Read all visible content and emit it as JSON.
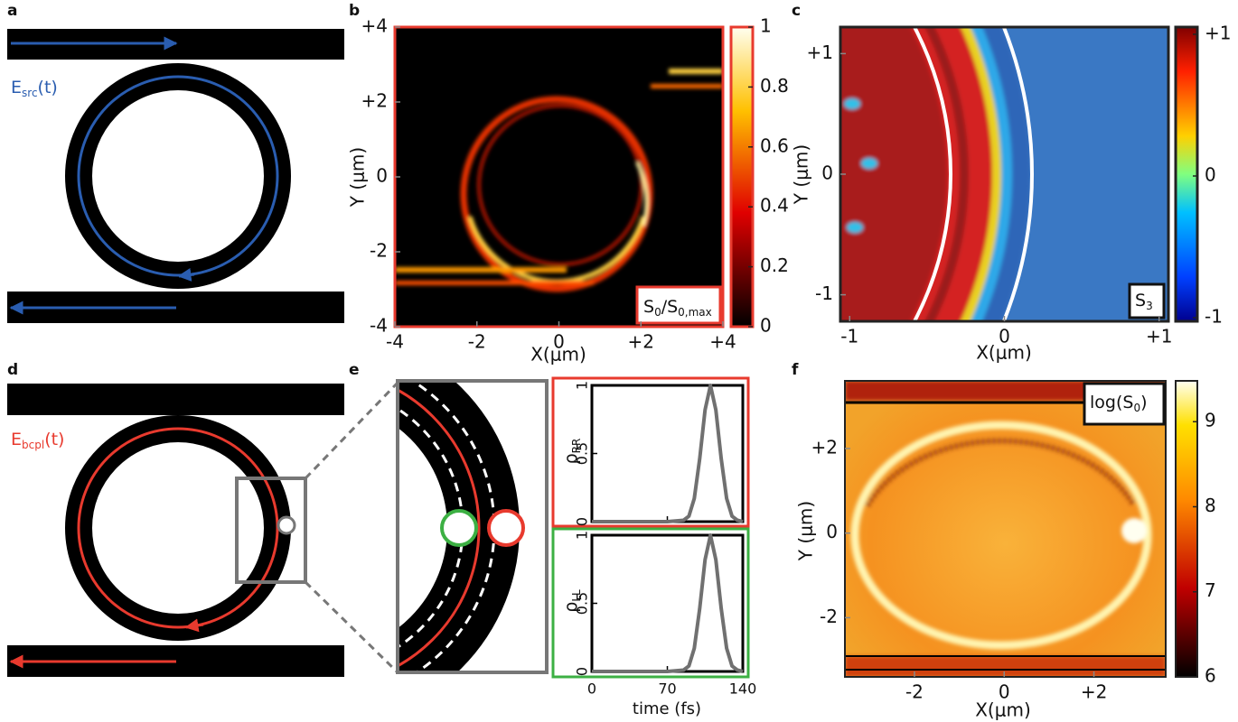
{
  "panel_a": {
    "letter": "a",
    "field": {
      "symbol": "E",
      "subscript": "src",
      "suffix": "(t)"
    }
  },
  "panel_b": {
    "letter": "b",
    "xlabel": "X(μm)",
    "ylabel": "Y (μm)",
    "xlim": [
      -4,
      4
    ],
    "ylim": [
      -4,
      4
    ],
    "xticks": [
      -4,
      -2,
      0,
      {
        "value": 2,
        "label": "+2"
      },
      {
        "value": 4,
        "label": "+4"
      }
    ],
    "yticks": [
      -4,
      -2,
      0,
      {
        "value": 2,
        "label": "+2"
      },
      {
        "value": 4,
        "label": "+4"
      }
    ],
    "clim": [
      0,
      1
    ],
    "cticks": [
      0,
      0.2,
      0.4,
      0.6,
      0.8,
      1
    ],
    "annotation": {
      "parts": [
        "S",
        "0",
        "/S",
        "0,max"
      ]
    }
  },
  "panel_c": {
    "letter": "c",
    "xlabel": "X(μm)",
    "ylabel": "Y (μm)",
    "xlim": [
      -1.06,
      1.06
    ],
    "ylim": [
      -1.22,
      1.22
    ],
    "xticks": [
      -1,
      0,
      {
        "value": 1,
        "label": "+1"
      }
    ],
    "yticks": [
      -1,
      0,
      {
        "value": 1,
        "label": "+1"
      }
    ],
    "clim": [
      -1,
      1
    ],
    "cticks": [
      -1,
      0,
      {
        "value": 1,
        "label": "+1"
      }
    ],
    "annotation": {
      "parts": [
        "S",
        "3"
      ]
    }
  },
  "panel_d": {
    "letter": "d",
    "field": {
      "symbol": "E",
      "subscript": "bcpl",
      "suffix": "(t)"
    }
  },
  "panel_e": {
    "letter": "e",
    "xlabel": "time (fs)",
    "xlim": [
      0,
      140
    ],
    "ylim": [
      0,
      1
    ],
    "xticks": [
      0,
      70,
      140
    ],
    "yticks": [
      0,
      0.5,
      1
    ],
    "color": "#707070",
    "plots": [
      {
        "ylabel": {
          "symbol": "ρ",
          "subscript": "RR"
        },
        "x": [
          0,
          70,
          85,
          90,
          95,
          100,
          105,
          110,
          115,
          120,
          125,
          130,
          135,
          140
        ],
        "values": [
          0,
          0,
          0.01,
          0.04,
          0.17,
          0.46,
          0.82,
          1,
          0.82,
          0.46,
          0.17,
          0.04,
          0.01,
          0
        ]
      },
      {
        "ylabel": {
          "symbol": "ρ",
          "subscript": "LL"
        },
        "x": [
          0,
          70,
          85,
          90,
          95,
          100,
          105,
          110,
          115,
          120,
          125,
          130,
          135,
          140
        ],
        "values": [
          0,
          0,
          0.01,
          0.04,
          0.17,
          0.46,
          0.82,
          1,
          0.82,
          0.46,
          0.17,
          0.04,
          0.01,
          0
        ]
      }
    ]
  },
  "panel_f": {
    "letter": "f",
    "xlabel": "X(μm)",
    "ylabel": "Y (μm)",
    "xlim": [
      -3.55,
      3.6
    ],
    "ylim": [
      -3.4,
      3.6
    ],
    "xticks": [
      -2,
      0,
      {
        "value": 2,
        "label": "+2"
      }
    ],
    "yticks": [
      -2,
      0,
      {
        "value": 2,
        "label": "+2"
      }
    ],
    "clim": [
      6,
      9.48
    ],
    "cticks": [
      6,
      7,
      8,
      9
    ],
    "annotation": {
      "parts": [
        "log(S",
        "0",
        ")"
      ]
    }
  }
}
